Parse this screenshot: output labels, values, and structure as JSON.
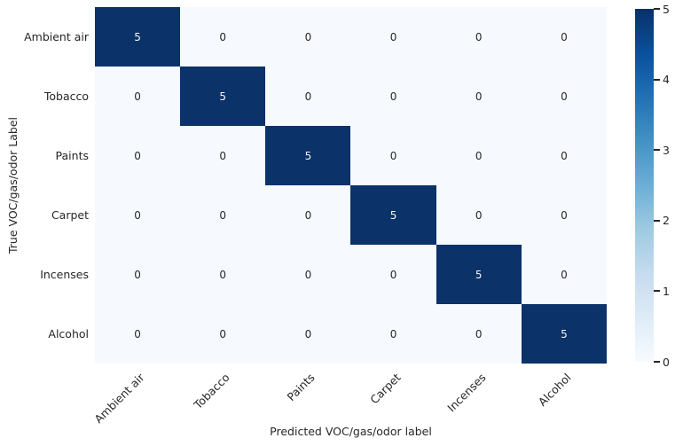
{
  "chart_data": {
    "type": "heatmap",
    "title": "",
    "xlabel": "Predicted VOC/gas/odor label",
    "ylabel": "True VOC/gas/odor Label",
    "x_categories": [
      "Ambient air",
      "Tobacco",
      "Paints",
      "Carpet",
      "Incenses",
      "Alcohol"
    ],
    "y_categories": [
      "Ambient air",
      "Tobacco",
      "Paints",
      "Carpet",
      "Incenses",
      "Alcohol"
    ],
    "matrix": [
      [
        5,
        0,
        0,
        0,
        0,
        0
      ],
      [
        0,
        5,
        0,
        0,
        0,
        0
      ],
      [
        0,
        0,
        5,
        0,
        0,
        0
      ],
      [
        0,
        0,
        0,
        5,
        0,
        0
      ],
      [
        0,
        0,
        0,
        0,
        5,
        0
      ],
      [
        0,
        0,
        0,
        0,
        0,
        5
      ]
    ],
    "vmin": 0,
    "vmax": 5,
    "colormap": "Blues",
    "colorbar_ticks": [
      0,
      1,
      2,
      3,
      4,
      5
    ],
    "legend_position": "right",
    "grid": false,
    "colors": {
      "cell_high": "#0b3269",
      "cell_low": "#f6fafe",
      "annotation_on_dark": "#f5f5f5",
      "annotation_on_light": "#262626",
      "tick_text": "#262626",
      "gradient_stops_top_to_bottom": [
        "#08306b",
        "#08519c",
        "#2171b5",
        "#4292c6",
        "#6baed6",
        "#9ecae1",
        "#c6dbef",
        "#deebf7",
        "#f7fbff"
      ]
    }
  }
}
